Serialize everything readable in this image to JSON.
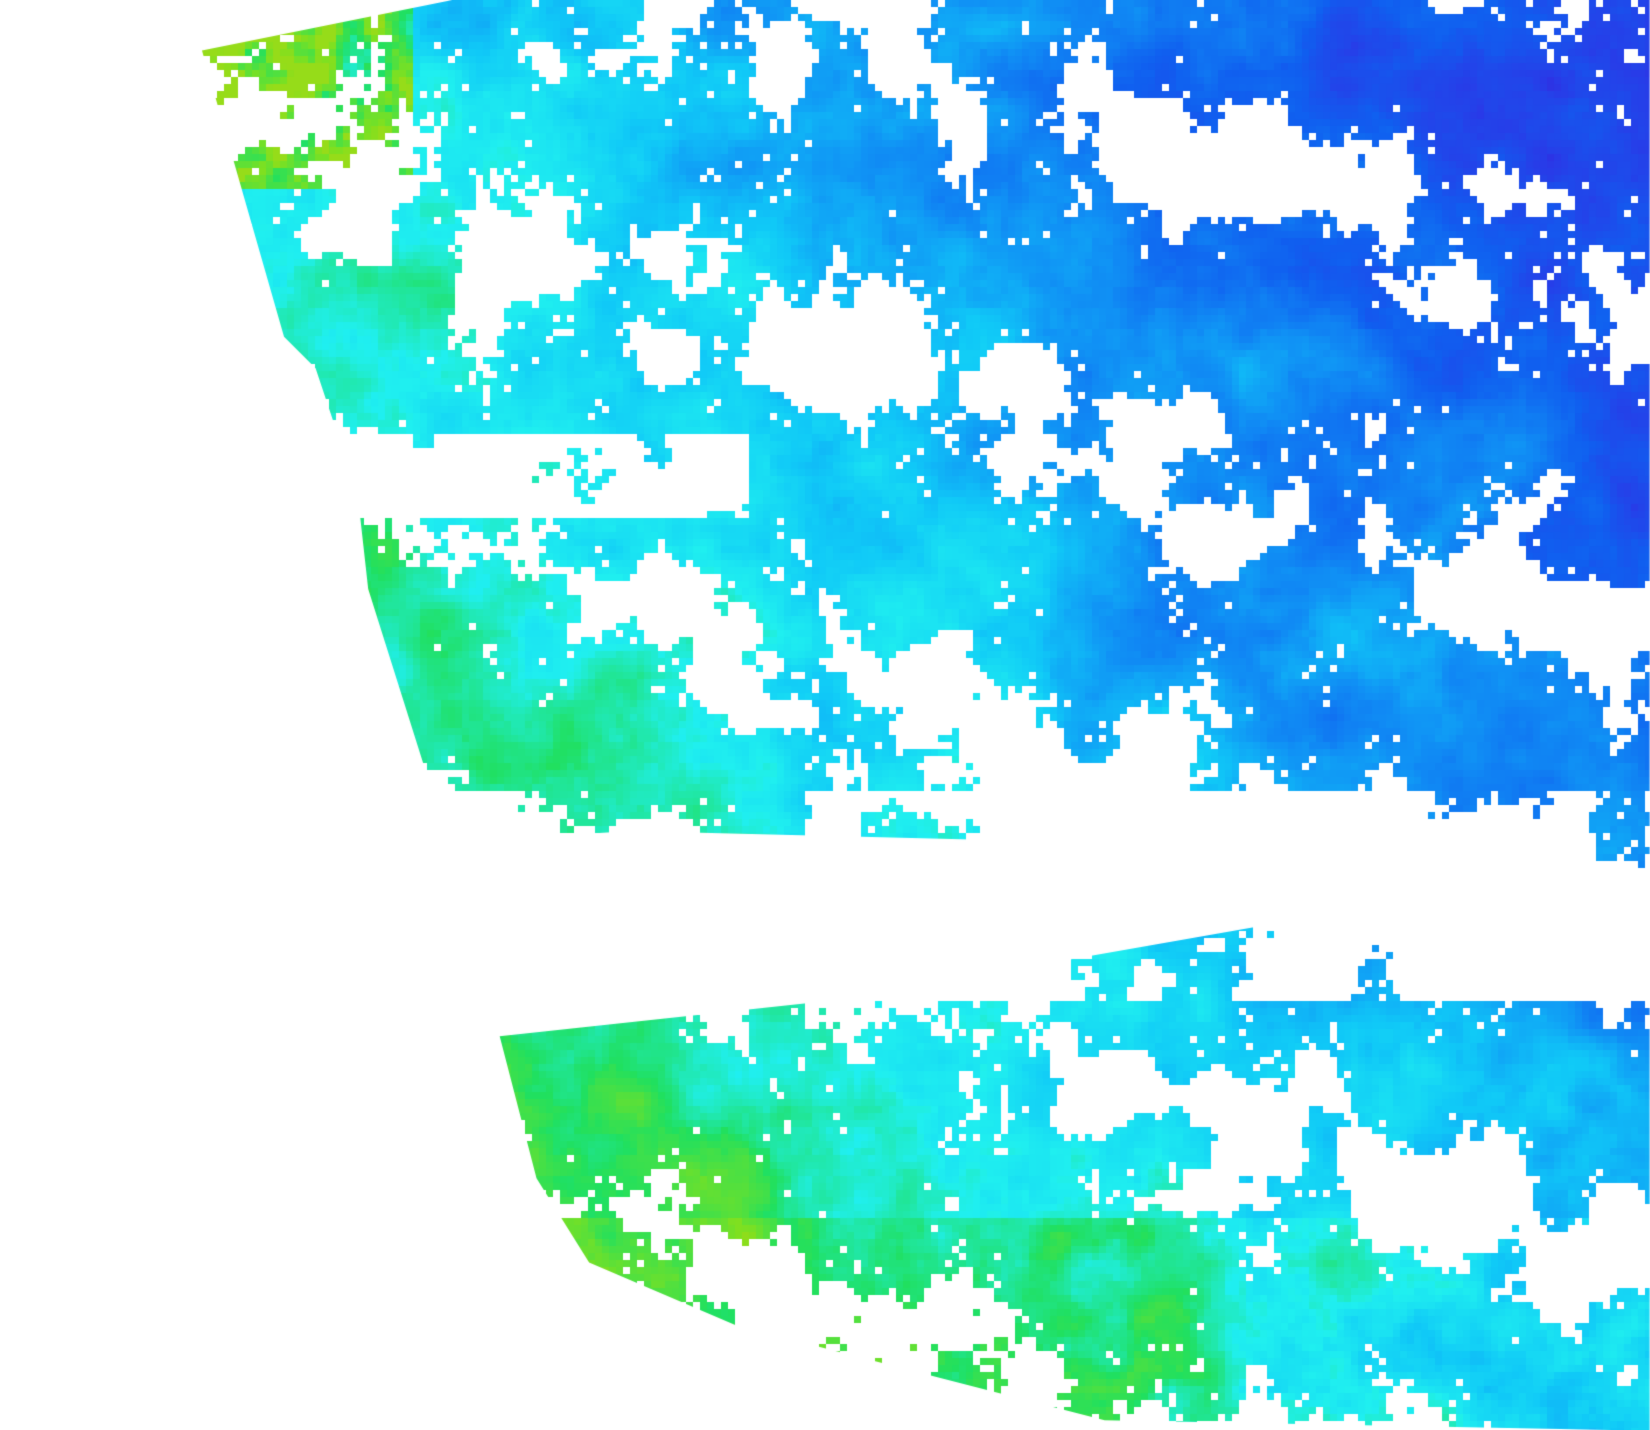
{
  "map": {
    "background": "#ffffff",
    "no_data_color": "#ffffff",
    "colormap": [
      "#4a00c8",
      "#2a3ae8",
      "#1060f0",
      "#1090f5",
      "#10c8f8",
      "#20f0f0",
      "#20e060",
      "#80e020",
      "#f0d000",
      "#f07000",
      "#800020"
    ]
  }
}
